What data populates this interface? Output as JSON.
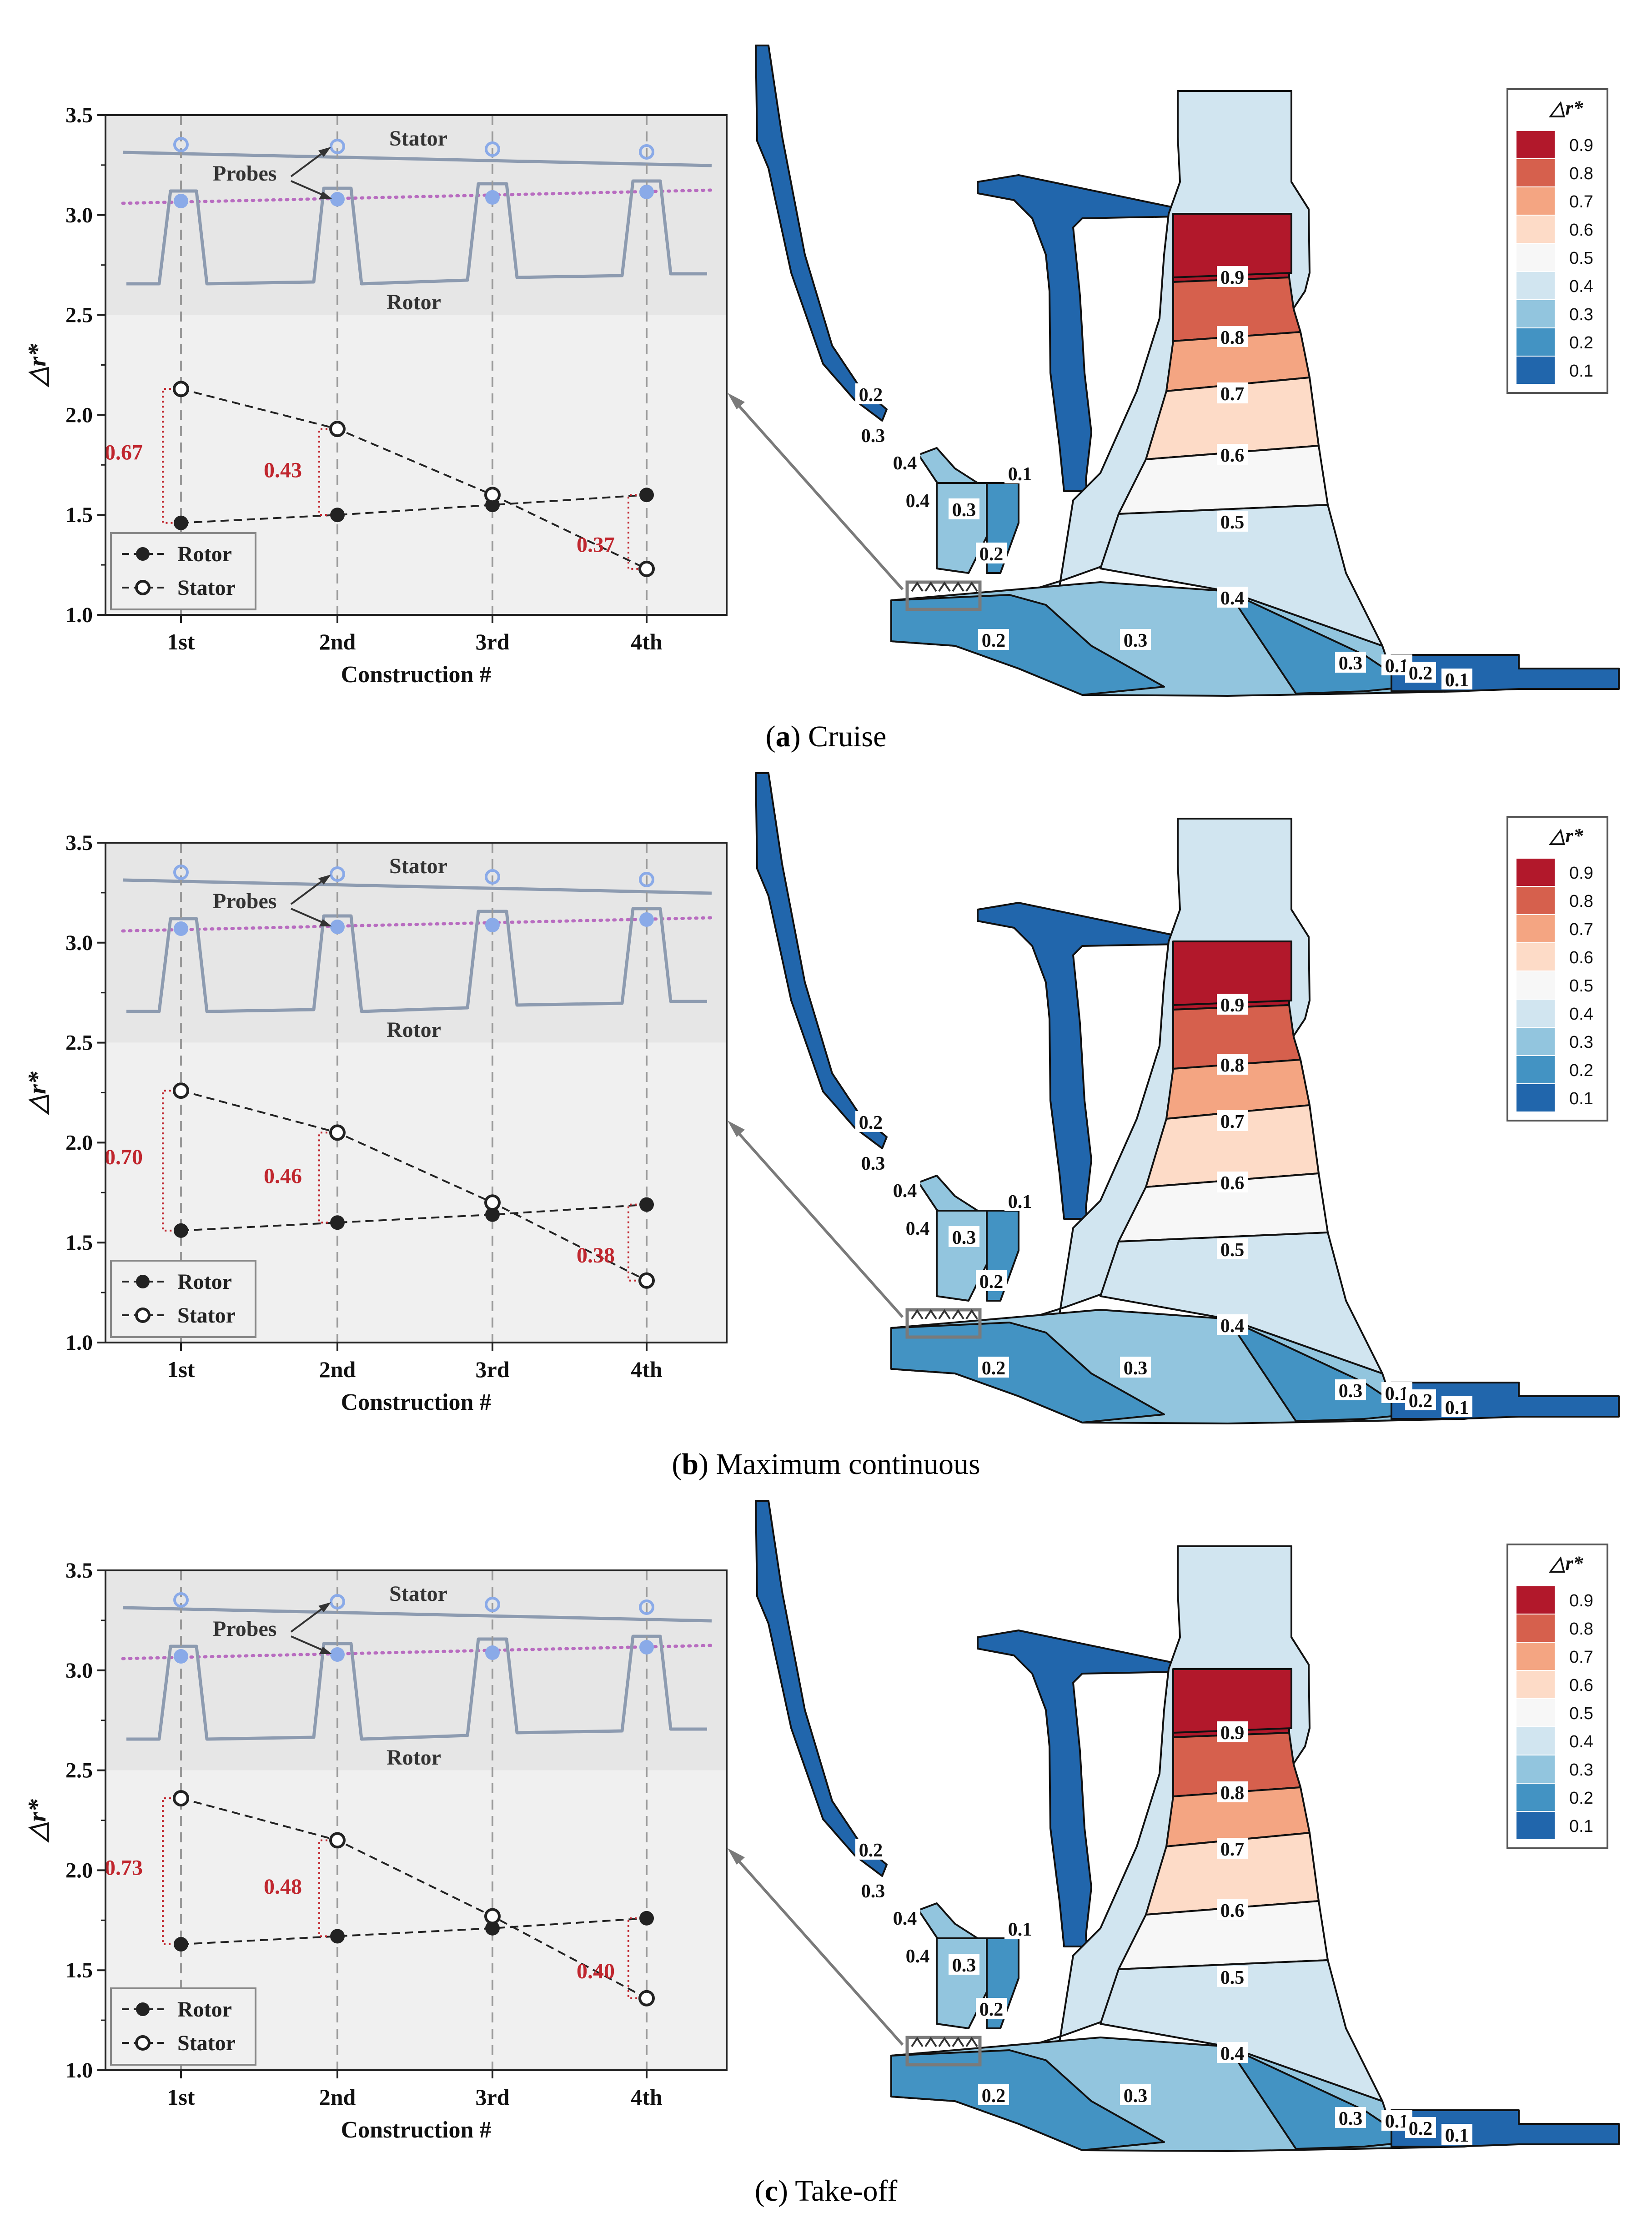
{
  "panels": [
    {
      "id": "a",
      "caption_letter": "a",
      "caption_text": "Cruise",
      "chart": {
        "type": "line",
        "xlabel": "Construction #",
        "ylabel": "△r*",
        "categories": [
          "1st",
          "2nd",
          "3rd",
          "4th"
        ],
        "ylim": [
          1.0,
          3.5
        ],
        "yticks": [
          "1.0",
          "1.5",
          "2.0",
          "2.5",
          "3.0",
          "3.5"
        ],
        "series": [
          {
            "name": "Rotor",
            "marker": "filled",
            "values": [
              1.46,
              1.5,
              1.55,
              1.6
            ]
          },
          {
            "name": "Stator",
            "marker": "hollow",
            "values": [
              2.13,
              1.93,
              1.6,
              1.23
            ]
          }
        ],
        "gaps": [
          "0.67",
          "0.43",
          "",
          "0.37"
        ],
        "inset_labels": {
          "stator": "Stator",
          "rotor": "Rotor",
          "probes": "Probes"
        }
      },
      "contour": {
        "legend_title": "△r*",
        "legend_levels": [
          "0.9",
          "0.8",
          "0.7",
          "0.6",
          "0.5",
          "0.4",
          "0.3",
          "0.2",
          "0.1"
        ],
        "inline_labels": [
          "0.9",
          "0.8",
          "0.7",
          "0.6",
          "0.5",
          "0.4",
          "0.3",
          "0.2",
          "0.1",
          "0.1",
          "0.2",
          "0.3",
          "0.4",
          "0.4",
          "0.3",
          "0.2",
          "0.1",
          "0.2",
          "0.3"
        ]
      }
    },
    {
      "id": "b",
      "caption_letter": "b",
      "caption_text": "Maximum continuous",
      "chart": {
        "type": "line",
        "xlabel": "Construction #",
        "ylabel": "△r*",
        "categories": [
          "1st",
          "2nd",
          "3rd",
          "4th"
        ],
        "ylim": [
          1.0,
          3.5
        ],
        "yticks": [
          "1.0",
          "1.5",
          "2.0",
          "2.5",
          "3.0",
          "3.5"
        ],
        "series": [
          {
            "name": "Rotor",
            "marker": "filled",
            "values": [
              1.56,
              1.6,
              1.64,
              1.69
            ]
          },
          {
            "name": "Stator",
            "marker": "hollow",
            "values": [
              2.26,
              2.05,
              1.7,
              1.31
            ]
          }
        ],
        "gaps": [
          "0.70",
          "0.46",
          "",
          "0.38"
        ],
        "inset_labels": {
          "stator": "Stator",
          "rotor": "Rotor",
          "probes": "Probes"
        }
      },
      "contour": {
        "legend_title": "△r*",
        "legend_levels": [
          "0.9",
          "0.8",
          "0.7",
          "0.6",
          "0.5",
          "0.4",
          "0.3",
          "0.2",
          "0.1"
        ],
        "inline_labels": [
          "0.9",
          "0.8",
          "0.7",
          "0.6",
          "0.5",
          "0.4",
          "0.3",
          "0.2",
          "0.1",
          "0.1",
          "0.2",
          "0.3",
          "0.4",
          "0.4",
          "0.3",
          "0.2",
          "0.1",
          "0.2",
          "0.3"
        ]
      }
    },
    {
      "id": "c",
      "caption_letter": "c",
      "caption_text": "Take-off",
      "chart": {
        "type": "line",
        "xlabel": "Construction #",
        "ylabel": "△r*",
        "categories": [
          "1st",
          "2nd",
          "3rd",
          "4th"
        ],
        "ylim": [
          1.0,
          3.5
        ],
        "yticks": [
          "1.0",
          "1.5",
          "2.0",
          "2.5",
          "3.0",
          "3.5"
        ],
        "series": [
          {
            "name": "Rotor",
            "marker": "filled",
            "values": [
              1.63,
              1.67,
              1.71,
              1.76
            ]
          },
          {
            "name": "Stator",
            "marker": "hollow",
            "values": [
              2.36,
              2.15,
              1.77,
              1.36
            ]
          }
        ],
        "gaps": [
          "0.73",
          "0.48",
          "",
          "0.40"
        ],
        "inset_labels": {
          "stator": "Stator",
          "rotor": "Rotor",
          "probes": "Probes"
        }
      },
      "contour": {
        "legend_title": "△r*",
        "legend_levels": [
          "0.9",
          "0.8",
          "0.7",
          "0.6",
          "0.5",
          "0.4",
          "0.3",
          "0.2",
          "0.1"
        ],
        "inline_labels": [
          "0.9",
          "0.8",
          "0.7",
          "0.6",
          "0.5",
          "0.4",
          "0.3",
          "0.2",
          "0.1",
          "0.1",
          "0.2",
          "0.3",
          "0.4",
          "0.4",
          "0.3",
          "0.2",
          "0.1",
          "0.2",
          "0.3"
        ]
      }
    }
  ],
  "chart_data": [
    {
      "type": "line",
      "title": "",
      "xlabel": "Construction #",
      "ylabel": "△r*",
      "categories": [
        "1st",
        "2nd",
        "3rd",
        "4th"
      ],
      "ylim": [
        1.0,
        3.5
      ],
      "series": [
        {
          "name": "Rotor",
          "values": [
            1.46,
            1.5,
            1.55,
            1.6
          ]
        },
        {
          "name": "Stator",
          "values": [
            2.13,
            1.93,
            1.6,
            1.23
          ]
        }
      ],
      "annotations": [
        "0.67",
        "0.43",
        "0.37"
      ],
      "legend": "bottom-left",
      "grid": false
    },
    {
      "type": "line",
      "title": "",
      "xlabel": "Construction #",
      "ylabel": "△r*",
      "categories": [
        "1st",
        "2nd",
        "3rd",
        "4th"
      ],
      "ylim": [
        1.0,
        3.5
      ],
      "series": [
        {
          "name": "Rotor",
          "values": [
            1.56,
            1.6,
            1.64,
            1.69
          ]
        },
        {
          "name": "Stator",
          "values": [
            2.26,
            2.05,
            1.7,
            1.31
          ]
        }
      ],
      "annotations": [
        "0.70",
        "0.46",
        "0.38"
      ],
      "legend": "bottom-left",
      "grid": false
    },
    {
      "type": "line",
      "title": "",
      "xlabel": "Construction #",
      "ylabel": "△r*",
      "categories": [
        "1st",
        "2nd",
        "3rd",
        "4th"
      ],
      "ylim": [
        1.0,
        3.5
      ],
      "series": [
        {
          "name": "Rotor",
          "values": [
            1.63,
            1.67,
            1.71,
            1.76
          ]
        },
        {
          "name": "Stator",
          "values": [
            2.36,
            2.15,
            1.77,
            1.36
          ]
        }
      ],
      "annotations": [
        "0.73",
        "0.48",
        "0.40"
      ],
      "legend": "bottom-left",
      "grid": false
    }
  ],
  "colors": {
    "level_colors": [
      "#b2182b",
      "#d6604d",
      "#f4a582",
      "#fddbc7",
      "#f7f7f7",
      "#d1e5f0",
      "#92c5de",
      "#4393c3",
      "#2166ac"
    ],
    "gap_label": "#c0262e",
    "probe": "#8aaae8",
    "inset_line": "#8d9bb0",
    "dotted": "#b86cc0",
    "upper_band": "#e6e6e6",
    "lower_band": "#f0f0f0"
  }
}
